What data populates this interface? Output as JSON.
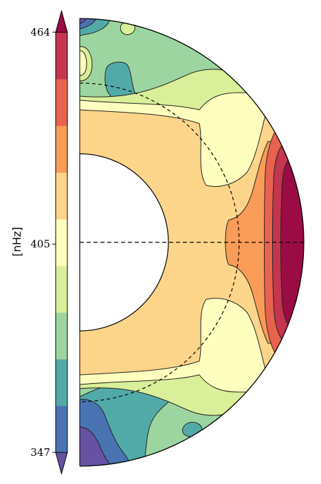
{
  "chart_data": {
    "type": "heatmap",
    "title": "",
    "colorbar": {
      "label": "[nHz]",
      "min": 347,
      "max": 464,
      "tick_values": [
        464,
        405,
        347
      ],
      "tick_labels": [
        "464",
        "405",
        "347"
      ],
      "extend": "both",
      "levels": [
        {
          "from": 347,
          "to": 360,
          "color": "#4a73b2"
        },
        {
          "from": 360,
          "to": 373,
          "color": "#52aaa8"
        },
        {
          "from": 373,
          "to": 386,
          "color": "#9dd5a0"
        },
        {
          "from": 386,
          "to": 399,
          "color": "#d9ef99"
        },
        {
          "from": 399,
          "to": 412,
          "color": "#fefebe"
        },
        {
          "from": 412,
          "to": 425,
          "color": "#fdd58a"
        },
        {
          "from": 425,
          "to": 438,
          "color": "#f99c58"
        },
        {
          "from": 438,
          "to": 451,
          "color": "#e8634d"
        },
        {
          "from": 451,
          "to": 464,
          "color": "#c4354f"
        }
      ],
      "under_color": "#6652a3",
      "over_color": "#9b0c44"
    },
    "domain": {
      "shape": "meridional half-disk",
      "inner_radius_fraction": 0.395,
      "reference_radius_fraction": 0.71,
      "equator_line": "dashed",
      "reference_circle": "dashed"
    },
    "regions": [
      {
        "name": "equatorial-band",
        "value_range": [
          412,
          425
        ]
      },
      {
        "name": "equatorial-surface-maximum",
        "value_range": [
          451,
          464
        ]
      },
      {
        "name": "mid-latitude-surface",
        "value_range": [
          373,
          386
        ]
      },
      {
        "name": "north-pole-cap",
        "value_range": [
          347,
          360
        ]
      },
      {
        "name": "south-pole-cap",
        "value_range": [
          347,
          360
        ]
      }
    ]
  }
}
